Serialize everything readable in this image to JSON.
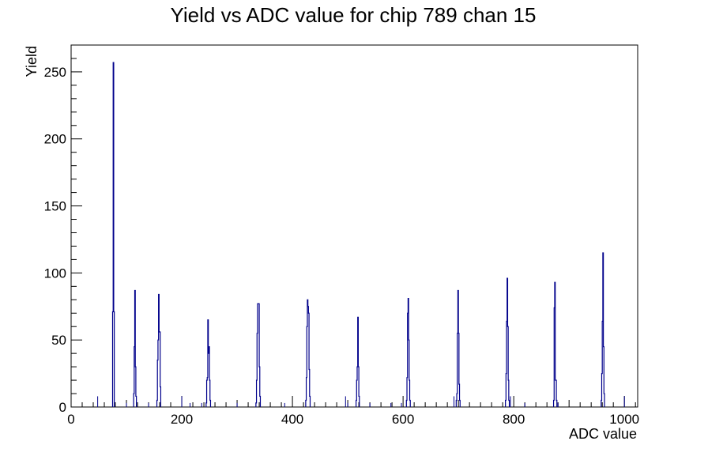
{
  "chart_data": {
    "type": "bar",
    "title": "Yield vs ADC value for chip 789 chan 15",
    "xlabel": "ADC value",
    "ylabel": "Yield",
    "xlim": [
      0,
      1024
    ],
    "ylim": [
      0,
      270
    ],
    "grid": false,
    "legend": "none",
    "x_ticks": [
      0,
      200,
      400,
      600,
      800,
      1000
    ],
    "y_ticks": [
      0,
      50,
      100,
      150,
      200,
      250
    ],
    "line_color": "#00008b",
    "bin_width": 1,
    "peaks": [
      {
        "center": 76,
        "bins": [
          [
            75,
            71
          ],
          [
            76,
            257
          ],
          [
            77,
            71
          ]
        ]
      },
      {
        "center": 115,
        "bins": [
          [
            113,
            10
          ],
          [
            114,
            45
          ],
          [
            115,
            87
          ],
          [
            116,
            30
          ],
          [
            117,
            8
          ]
        ]
      },
      {
        "center": 158,
        "bins": [
          [
            155,
            5
          ],
          [
            156,
            35
          ],
          [
            157,
            50
          ],
          [
            158,
            84
          ],
          [
            159,
            56
          ],
          [
            160,
            56
          ],
          [
            161,
            15
          ]
        ]
      },
      {
        "center": 248,
        "bins": [
          [
            244,
            3
          ],
          [
            245,
            20
          ],
          [
            246,
            22
          ],
          [
            247,
            65
          ],
          [
            248,
            40
          ],
          [
            249,
            45
          ],
          [
            250,
            20
          ],
          [
            251,
            5
          ]
        ]
      },
      {
        "center": 338,
        "bins": [
          [
            334,
            3
          ],
          [
            335,
            20
          ],
          [
            336,
            55
          ],
          [
            337,
            77
          ],
          [
            338,
            77
          ],
          [
            339,
            77
          ],
          [
            340,
            30
          ],
          [
            341,
            8
          ]
        ]
      },
      {
        "center": 428,
        "bins": [
          [
            424,
            5
          ],
          [
            425,
            22
          ],
          [
            426,
            60
          ],
          [
            427,
            80
          ],
          [
            428,
            75
          ],
          [
            429,
            70
          ],
          [
            430,
            28
          ],
          [
            431,
            8
          ]
        ]
      },
      {
        "center": 518,
        "bins": [
          [
            515,
            5
          ],
          [
            516,
            20
          ],
          [
            517,
            30
          ],
          [
            518,
            67
          ],
          [
            519,
            30
          ],
          [
            520,
            8
          ]
        ]
      },
      {
        "center": 610,
        "bins": [
          [
            606,
            5
          ],
          [
            607,
            22
          ],
          [
            608,
            70
          ],
          [
            609,
            81
          ],
          [
            610,
            50
          ],
          [
            611,
            20
          ],
          [
            612,
            5
          ]
        ]
      },
      {
        "center": 699,
        "bins": [
          [
            696,
            5
          ],
          [
            697,
            10
          ],
          [
            698,
            55
          ],
          [
            699,
            87
          ],
          [
            700,
            55
          ],
          [
            701,
            17
          ],
          [
            702,
            5
          ]
        ]
      },
      {
        "center": 789,
        "bins": [
          [
            785,
            5
          ],
          [
            786,
            25
          ],
          [
            787,
            64
          ],
          [
            788,
            96
          ],
          [
            789,
            60
          ],
          [
            790,
            20
          ],
          [
            791,
            5
          ]
        ]
      },
      {
        "center": 875,
        "bins": [
          [
            872,
            5
          ],
          [
            873,
            74
          ],
          [
            874,
            93
          ],
          [
            875,
            20
          ],
          [
            876,
            20
          ],
          [
            877,
            5
          ]
        ]
      },
      {
        "center": 962,
        "bins": [
          [
            958,
            5
          ],
          [
            959,
            25
          ],
          [
            960,
            64
          ],
          [
            961,
            115
          ],
          [
            962,
            45
          ],
          [
            963,
            10
          ]
        ]
      }
    ],
    "singles": [
      [
        48,
        8
      ],
      [
        100,
        3
      ],
      [
        140,
        3
      ],
      [
        200,
        8
      ],
      [
        215,
        3
      ],
      [
        236,
        3
      ],
      [
        300,
        3
      ],
      [
        386,
        3
      ],
      [
        496,
        8
      ],
      [
        500,
        3
      ],
      [
        540,
        3
      ],
      [
        578,
        3
      ],
      [
        597,
        3
      ],
      [
        692,
        8
      ],
      [
        794,
        8
      ],
      [
        820,
        3
      ],
      [
        880,
        3
      ],
      [
        1000,
        8
      ]
    ]
  }
}
